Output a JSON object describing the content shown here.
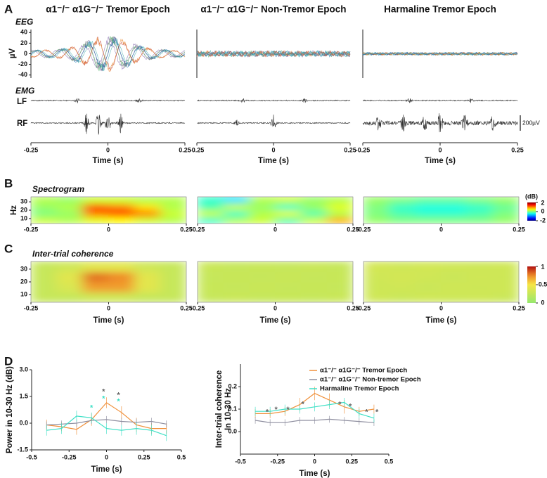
{
  "chart_data": [
    {
      "type": "trace",
      "panel": "A",
      "titles": [
        "α1⁻/⁻ α1G⁻/⁻ Tremor Epoch",
        "α1⁻/⁻ α1G⁻/⁻ Non-Tremor Epoch",
        "Harmaline Tremor Epoch"
      ],
      "eeg_label": "EEG",
      "emg_label": "EMG",
      "channels": [
        "LF",
        "RF"
      ],
      "ylabel": "µV",
      "ylim": [
        -43,
        43
      ],
      "yticks": [
        40,
        20,
        0,
        -20,
        -40
      ],
      "xlim": [
        -0.25,
        0.25
      ],
      "xticks": [
        -0.25,
        0,
        0.25
      ],
      "xlabel": "Time (s)",
      "eeg_peak_amplitude": [
        35,
        6,
        3
      ],
      "eeg_colors": [
        "#2b2b6e",
        "#c0392b",
        "#3aa655",
        "#7b5ea7",
        "#e67e22",
        "#1f77b4",
        "#888888",
        "#2ca6a4"
      ],
      "scale_bar": {
        "value": 200,
        "label": "200µV"
      }
    },
    {
      "type": "heatmap",
      "panel": "B",
      "label": "Spectrogram",
      "ylabel": "Hz",
      "xlim": [
        -0.25,
        0.25
      ],
      "xticks": [
        -0.25,
        0,
        0.25
      ],
      "ylim": [
        4,
        36
      ],
      "yticks": [
        30,
        20,
        10
      ],
      "colormap": "jet",
      "colorbar": {
        "title": "(dB)",
        "lim": [
          -2,
          2
        ],
        "ticks": [
          2,
          0,
          -2
        ]
      },
      "z": [
        [
          [
            0.3,
            0.2,
            0.4,
            0.5,
            0.3,
            0.2
          ],
          [
            0,
            0.1,
            1.0,
            1.2,
            1.0,
            0.3
          ],
          [
            0.1,
            0.2,
            1.2,
            1.0,
            0.6,
            0.2
          ],
          [
            0.2,
            0.1,
            0.3,
            0.3,
            0.2,
            0.2
          ]
        ],
        [
          [
            -0.3,
            0.2,
            0.3,
            -0.2,
            0.3,
            0.8
          ],
          [
            0.3,
            -0.3,
            0.2,
            0.4,
            -0.2,
            0.2
          ],
          [
            -0.2,
            0.3,
            0.1,
            -0.3,
            0.1,
            0.4
          ],
          [
            -0.3,
            -0.6,
            0.2,
            0.3,
            0.1,
            0.2
          ]
        ],
        [
          [
            0.1,
            0,
            0,
            0,
            0,
            0.1
          ],
          [
            0,
            -0.2,
            -0.3,
            -0.3,
            -0.2,
            0
          ],
          [
            0,
            -0.3,
            -0.4,
            -0.4,
            -0.3,
            -0.1
          ],
          [
            0.1,
            0,
            -0.1,
            -0.1,
            0,
            0.1
          ]
        ]
      ]
    },
    {
      "type": "heatmap",
      "panel": "C",
      "label": "Inter-trial coherence",
      "xlabel": "Time (s)",
      "xlim": [
        -0.25,
        0.25
      ],
      "xticks": [
        -0.25,
        0,
        0.25
      ],
      "ylim": [
        4,
        36
      ],
      "yticks": [
        30,
        20,
        10
      ],
      "colormap": "green-red",
      "colorbar": {
        "lim": [
          0,
          1
        ],
        "ticks": [
          1,
          0.5,
          0
        ]
      },
      "z": [
        [
          [
            0.25,
            0.25,
            0.3,
            0.3,
            0.25,
            0.25
          ],
          [
            0.25,
            0.35,
            0.7,
            0.7,
            0.4,
            0.25
          ],
          [
            0.25,
            0.4,
            0.8,
            0.75,
            0.4,
            0.25
          ],
          [
            0.25,
            0.3,
            0.4,
            0.4,
            0.3,
            0.25
          ]
        ],
        [
          [
            0.25,
            0.27,
            0.25,
            0.26,
            0.25,
            0.27
          ],
          [
            0.26,
            0.25,
            0.27,
            0.25,
            0.26,
            0.25
          ],
          [
            0.25,
            0.26,
            0.25,
            0.27,
            0.25,
            0.26
          ],
          [
            0.27,
            0.25,
            0.26,
            0.25,
            0.27,
            0.25
          ]
        ],
        [
          [
            0.3,
            0.28,
            0.3,
            0.29,
            0.3,
            0.28
          ],
          [
            0.29,
            0.3,
            0.28,
            0.3,
            0.29,
            0.3
          ],
          [
            0.3,
            0.32,
            0.3,
            0.28,
            0.3,
            0.29
          ],
          [
            0.32,
            0.3,
            0.31,
            0.3,
            0.29,
            0.3
          ]
        ]
      ]
    },
    {
      "type": "line",
      "panel": "D",
      "ylabel": "Power in 10-30 Hz (dB)",
      "xlabel": "Time (s)",
      "xlim": [
        -0.5,
        0.5
      ],
      "xticks": [
        -0.5,
        -0.25,
        0,
        0.25,
        0.5
      ],
      "ylim": [
        -1.5,
        3
      ],
      "yticks": [
        -1.5,
        {
          "value": 0,
          "label": "0.0"
        },
        1.5,
        {
          "value": 3,
          "label": "3.0"
        }
      ],
      "x": [
        -0.4,
        -0.3,
        -0.2,
        -0.1,
        0,
        0.1,
        0.2,
        0.3,
        0.4
      ],
      "series": [
        {
          "color": "#f0903a",
          "values": [
            -0.1,
            -0.2,
            -0.35,
            0.2,
            1.15,
            0.6,
            -0.1,
            -0.3,
            -0.3
          ],
          "errors": [
            0.3,
            0.25,
            0.3,
            0.35,
            0.3,
            0.35,
            0.4,
            0.3,
            0.3
          ]
        },
        {
          "color": "#8f8fa0",
          "values": [
            -0.1,
            -0.05,
            0.0,
            0.15,
            0.2,
            0.1,
            0.05,
            0.1,
            -0.05
          ],
          "errors": [
            0.2,
            0.2,
            0.2,
            0.2,
            0.2,
            0.2,
            0.2,
            0.2,
            0.2
          ]
        },
        {
          "color": "#3ee0c6",
          "values": [
            -0.4,
            -0.3,
            0.4,
            0.3,
            -0.3,
            -0.4,
            -0.3,
            -0.4,
            -0.7
          ],
          "errors": [
            0.3,
            0.3,
            0.3,
            0.3,
            0.3,
            0.3,
            0.35,
            0.3,
            0.3
          ]
        }
      ],
      "annotations": [
        {
          "text": "*",
          "x": -0.02,
          "y": 1.75,
          "color": "#666666"
        },
        {
          "text": "*",
          "x": 0.08,
          "y": 1.55,
          "color": "#666666"
        },
        {
          "text": "*",
          "x": -0.1,
          "y": 0.85,
          "color": "#3ee0c6"
        },
        {
          "text": "*",
          "x": -0.02,
          "y": 1.35,
          "color": "#3ee0c6"
        },
        {
          "text": "*",
          "x": 0.08,
          "y": 1.2,
          "color": "#3ee0c6"
        }
      ]
    },
    {
      "type": "line",
      "ylabel": [
        "Inter-trial coherence",
        "In 10-30 Hz"
      ],
      "xlabel": "Time (s)",
      "xlim": [
        -0.5,
        0.5
      ],
      "xticks": [
        -0.5,
        -0.25,
        0,
        0.25,
        0.5
      ],
      "ylim": [
        -0.1,
        0.3
      ],
      "yticks": [
        {
          "value": 0,
          "label": "0.0"
        },
        0.1,
        0.2
      ],
      "x": [
        -0.4,
        -0.3,
        -0.2,
        -0.1,
        0,
        0.1,
        0.2,
        0.3,
        0.4
      ],
      "legend": "upper right",
      "series": [
        {
          "name": "α1⁻/⁻ α1G⁻/⁻ Tremor Epoch",
          "color": "#f0903a",
          "values": [
            0.08,
            0.08,
            0.09,
            0.12,
            0.17,
            0.14,
            0.11,
            0.09,
            0.1
          ],
          "errors": [
            0.02,
            0.02,
            0.02,
            0.03,
            0.03,
            0.03,
            0.03,
            0.02,
            0.02
          ]
        },
        {
          "name": "α1⁻/⁻ α1G⁻/⁻ Non-tremor Epoch",
          "color": "#8f8fa0",
          "values": [
            0.05,
            0.04,
            0.04,
            0.05,
            0.05,
            0.055,
            0.05,
            0.045,
            0.04
          ],
          "errors": [
            0.015,
            0.015,
            0.015,
            0.015,
            0.015,
            0.015,
            0.015,
            0.015,
            0.015
          ]
        },
        {
          "name": "Harmaline Tremor Epoch",
          "color": "#3ee0c6",
          "values": [
            0.09,
            0.09,
            0.1,
            0.1,
            0.11,
            0.12,
            0.13,
            0.08,
            0.06
          ],
          "errors": [
            0.02,
            0.02,
            0.02,
            0.02,
            0.02,
            0.02,
            0.02,
            0.02,
            0.02
          ]
        }
      ],
      "annotations": [
        {
          "text": "*",
          "x": -0.32,
          "y": 0.085,
          "color": "#666666"
        },
        {
          "text": "*",
          "x": -0.26,
          "y": 0.097,
          "color": "#666666"
        },
        {
          "text": "*",
          "x": -0.18,
          "y": 0.097,
          "color": "#666666"
        },
        {
          "text": "*",
          "x": -0.08,
          "y": 0.12,
          "color": "#666666"
        },
        {
          "text": "*",
          "x": 0.17,
          "y": 0.12,
          "color": "#666666"
        },
        {
          "text": "*",
          "x": 0.24,
          "y": 0.11,
          "color": "#666666"
        },
        {
          "text": "*",
          "x": 0.35,
          "y": 0.085,
          "color": "#666666"
        },
        {
          "text": "*",
          "x": 0.42,
          "y": 0.085,
          "color": "#666666"
        }
      ]
    }
  ]
}
